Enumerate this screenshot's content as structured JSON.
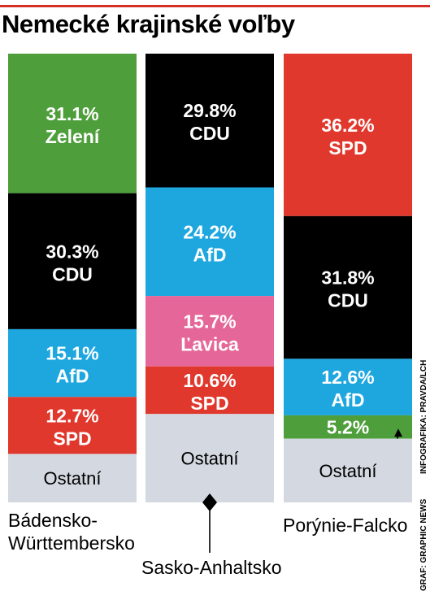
{
  "title": "Nemecké krajinské voľby",
  "credits": {
    "infographic": "INFOGRAFIKA: PRAVDA/LCH",
    "source": "GRAF: GRAPHIC NEWS"
  },
  "colors": {
    "Zelení": "#4e9e3b",
    "CDU": "#000000",
    "AfD": "#1ea7df",
    "SPD": "#e0382c",
    "Ľavica": "#e5679a",
    "Ostatní": "#d4d9e1"
  },
  "chart_data": {
    "type": "bar",
    "stacked": true,
    "orientation": "vertical",
    "categories": [
      "Bádensko-Württembersko",
      "Sasko-Anhaltsko",
      "Porýnie-Falcko"
    ],
    "category_labels": [
      "Bádensko-\nWürttembersko",
      "Sasko-Anhaltsko",
      "Porýnie-Falcko"
    ],
    "other_label": "Ostatní",
    "bars": [
      {
        "category": "Bádensko-Württembersko",
        "segments": [
          {
            "party": "Zelení",
            "value": 31.1,
            "label": "31.1%"
          },
          {
            "party": "CDU",
            "value": 30.3,
            "label": "30.3%"
          },
          {
            "party": "AfD",
            "value": 15.1,
            "label": "15.1%"
          },
          {
            "party": "SPD",
            "value": 12.7,
            "label": "12.7%"
          },
          {
            "party": "Ostatní",
            "value": 10.8
          }
        ]
      },
      {
        "category": "Sasko-Anhaltsko",
        "segments": [
          {
            "party": "CDU",
            "value": 29.8,
            "label": "29.8%"
          },
          {
            "party": "AfD",
            "value": 24.2,
            "label": "24.2%"
          },
          {
            "party": "Ľavica",
            "value": 15.7,
            "label": "15.7%"
          },
          {
            "party": "SPD",
            "value": 10.6,
            "label": "10.6%"
          },
          {
            "party": "Ostatní",
            "value": 19.7
          }
        ]
      },
      {
        "category": "Porýnie-Falcko",
        "segments": [
          {
            "party": "SPD",
            "value": 36.2,
            "label": "36.2%"
          },
          {
            "party": "CDU",
            "value": 31.8,
            "label": "31.8%"
          },
          {
            "party": "AfD",
            "value": 12.6,
            "label": "12.6%"
          },
          {
            "party": "Zelení",
            "value": 5.2,
            "label": "5.2%",
            "outside_label": true
          },
          {
            "party": "Ostatní",
            "value": 14.2
          }
        ]
      }
    ],
    "ylim": [
      0,
      100
    ]
  }
}
